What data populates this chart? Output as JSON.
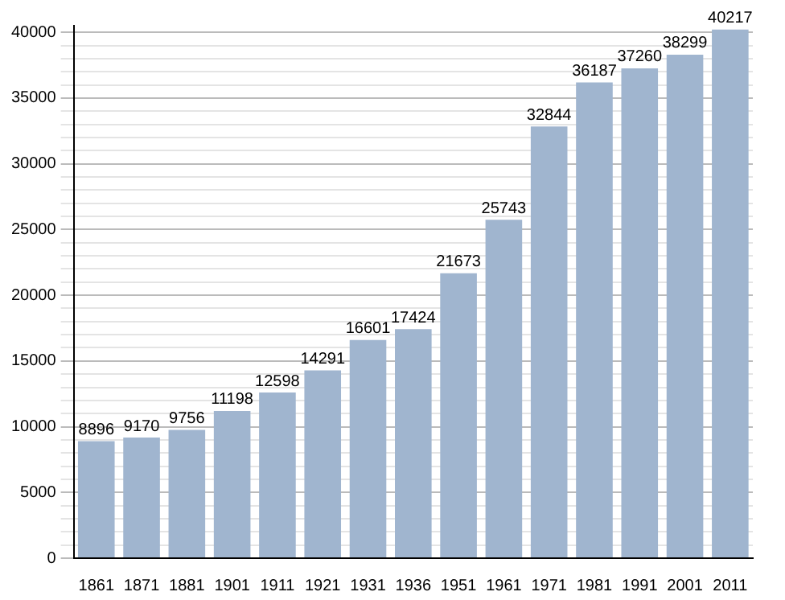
{
  "chart_data": {
    "type": "bar",
    "categories": [
      "1861",
      "1871",
      "1881",
      "1901",
      "1911",
      "1921",
      "1931",
      "1936",
      "1951",
      "1961",
      "1971",
      "1981",
      "1991",
      "2001",
      "2011"
    ],
    "values": [
      8896,
      9170,
      9756,
      11198,
      12598,
      14291,
      16601,
      17424,
      21673,
      25743,
      32844,
      36187,
      37260,
      38299,
      40217
    ],
    "color": "#a0b5cf",
    "ylim": [
      0,
      40500
    ],
    "yticks": [
      0,
      {
        "value": 1000,
        "label": null
      },
      {
        "value": 2000,
        "label": null
      },
      {
        "value": 3000,
        "label": null
      },
      {
        "value": 4000,
        "label": null
      },
      5000,
      {
        "value": 6000,
        "label": null
      },
      {
        "value": 7000,
        "label": null
      },
      {
        "value": 8000,
        "label": null
      },
      {
        "value": 9000,
        "label": null
      },
      10000,
      {
        "value": 11000,
        "label": null
      },
      {
        "value": 12000,
        "label": null
      },
      {
        "value": 13000,
        "label": null
      },
      {
        "value": 14000,
        "label": null
      },
      15000,
      {
        "value": 16000,
        "label": null
      },
      {
        "value": 17000,
        "label": null
      },
      {
        "value": 18000,
        "label": null
      },
      {
        "value": 19000,
        "label": null
      },
      20000,
      {
        "value": 21000,
        "label": null
      },
      {
        "value": 22000,
        "label": null
      },
      {
        "value": 23000,
        "label": null
      },
      {
        "value": 24000,
        "label": null
      },
      25000,
      {
        "value": 26000,
        "label": null
      },
      {
        "value": 27000,
        "label": null
      },
      {
        "value": 28000,
        "label": null
      },
      {
        "value": 29000,
        "label": null
      },
      30000,
      {
        "value": 31000,
        "label": null
      },
      {
        "value": 32000,
        "label": null
      },
      {
        "value": 33000,
        "label": null
      },
      {
        "value": 34000,
        "label": null
      },
      35000,
      {
        "value": 36000,
        "label": null
      },
      {
        "value": 37000,
        "label": null
      },
      {
        "value": 38000,
        "label": null
      },
      {
        "value": 39000,
        "label": null
      },
      40000
    ],
    "grid": "y",
    "legend": false,
    "data_labels": true
  }
}
